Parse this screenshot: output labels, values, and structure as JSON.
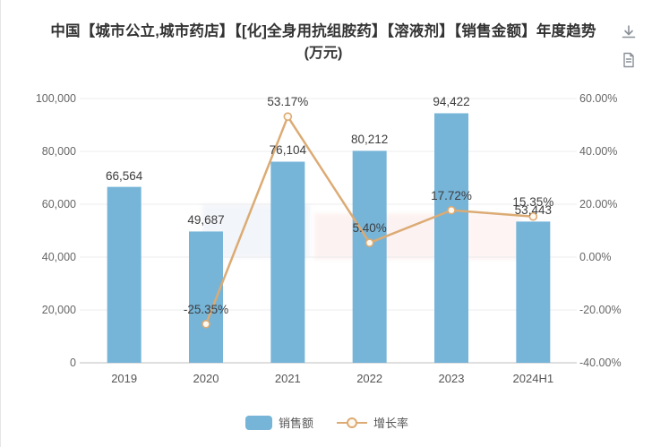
{
  "title": {
    "line1": "中国【城市公立,城市药店】【[化]全身用抗组胺药】【溶液剂】【销售金额】年度趋势",
    "line2": "(万元)"
  },
  "toolbar": {
    "icons": [
      "download-icon",
      "report-icon"
    ]
  },
  "colors": {
    "bar": "#76b4d8",
    "line": "#dcab74",
    "marker_fill": "#fdf8f0",
    "grid": "#ececec",
    "axis": "#cccccc",
    "tick_text": "#666666",
    "label_text": "#3d3d3d"
  },
  "chart_data": {
    "type": "bar",
    "combo": "bar+line",
    "categories": [
      "2019",
      "2020",
      "2021",
      "2022",
      "2023",
      "2024H1"
    ],
    "series": [
      {
        "name": "销售额",
        "type": "bar",
        "axis": "left",
        "values": [
          66564,
          49687,
          76104,
          80212,
          94422,
          53443
        ],
        "labels": [
          "66,564",
          "49,687",
          "76,104",
          "80,212",
          "94,422",
          "53,443"
        ]
      },
      {
        "name": "增长率",
        "type": "line",
        "axis": "right",
        "values": [
          null,
          -25.35,
          53.17,
          5.4,
          17.72,
          15.35
        ],
        "labels": [
          null,
          "-25.35%",
          "53.17%",
          "5.40%",
          "17.72%",
          "15.35%"
        ]
      }
    ],
    "left_axis": {
      "min": 0,
      "max": 100000,
      "tick_labels": [
        "0",
        "20,000",
        "40,000",
        "60,000",
        "80,000",
        "100,000"
      ]
    },
    "right_axis": {
      "min": -40,
      "max": 60,
      "tick_labels": [
        "-40.00%",
        "-20.00%",
        "0.00%",
        "20.00%",
        "40.00%",
        "60.00%"
      ]
    },
    "grid": true,
    "legend_position": "bottom"
  }
}
